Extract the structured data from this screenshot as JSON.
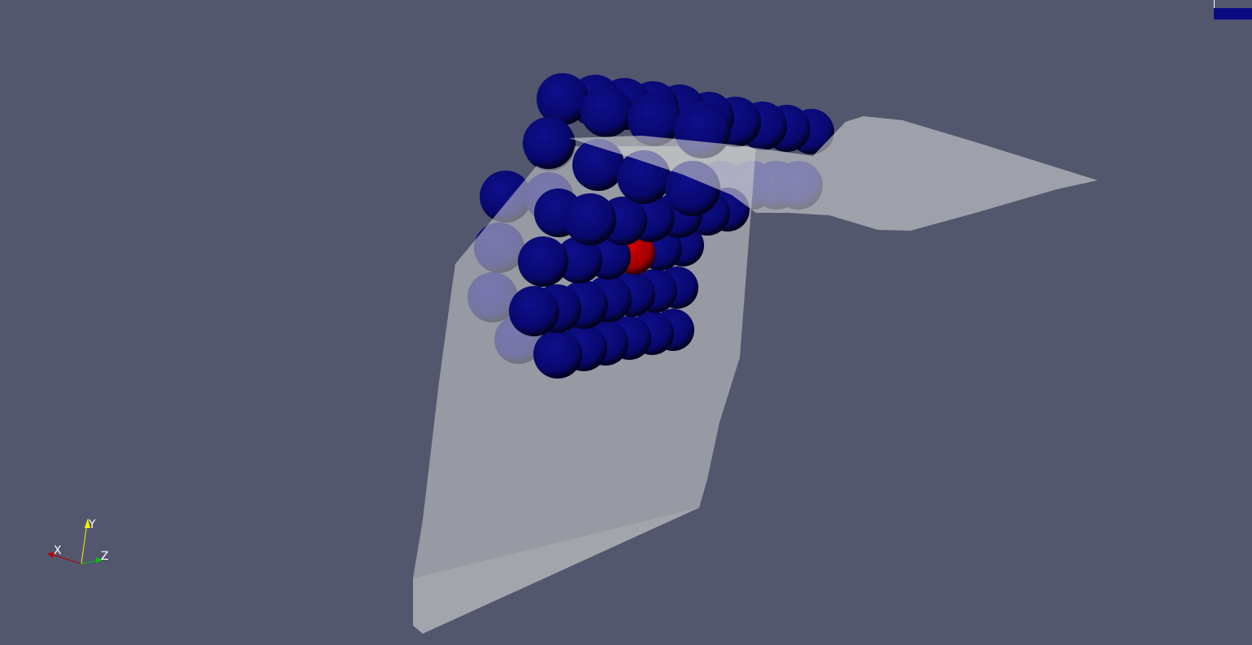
{
  "viewer": {
    "background_color": "#52576e",
    "surface_color": "#c8c8c8",
    "particle_color": "#0a0a82",
    "highlight_particle_color": "#c00000"
  },
  "color_legend": {
    "color": "#0a0a82"
  },
  "orientation_axes": {
    "x_label": "X",
    "y_label": "Y",
    "z_label": "Z",
    "x_color": "#b40000",
    "y_color": "#f0f000",
    "z_color": "#00c800"
  }
}
